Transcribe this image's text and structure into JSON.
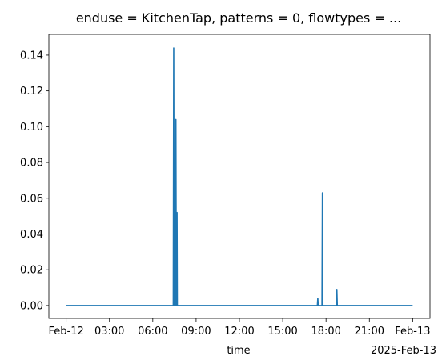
{
  "chart_data": {
    "type": "line",
    "title": "enduse = KitchenTap, patterns = 0, flowtypes = ...",
    "xlabel": "time",
    "ylabel": "",
    "x_offset_label": "2025-Feb-13",
    "xlim_hours": [
      -1.2,
      25.2
    ],
    "ylim": [
      -0.0072,
      0.1516
    ],
    "x_ticks": [
      {
        "hour": 0,
        "label": "Feb-12"
      },
      {
        "hour": 3,
        "label": "03:00"
      },
      {
        "hour": 6,
        "label": "06:00"
      },
      {
        "hour": 9,
        "label": "09:00"
      },
      {
        "hour": 12,
        "label": "12:00"
      },
      {
        "hour": 15,
        "label": "15:00"
      },
      {
        "hour": 18,
        "label": "18:00"
      },
      {
        "hour": 21,
        "label": "21:00"
      },
      {
        "hour": 24,
        "label": "Feb-13"
      }
    ],
    "y_ticks": [
      {
        "value": 0.0,
        "label": "0.00"
      },
      {
        "value": 0.02,
        "label": "0.02"
      },
      {
        "value": 0.04,
        "label": "0.04"
      },
      {
        "value": 0.06,
        "label": "0.06"
      },
      {
        "value": 0.08,
        "label": "0.08"
      },
      {
        "value": 0.1,
        "label": "0.10"
      },
      {
        "value": 0.12,
        "label": "0.12"
      },
      {
        "value": 0.14,
        "label": "0.14"
      }
    ],
    "series": [
      {
        "color": "#1f77b4",
        "points": [
          [
            0.0,
            0.0
          ],
          [
            7.42,
            0.0
          ],
          [
            7.45,
            0.144
          ],
          [
            7.48,
            0.0
          ],
          [
            7.5,
            0.0
          ],
          [
            7.52,
            0.051
          ],
          [
            7.54,
            0.0
          ],
          [
            7.58,
            0.0
          ],
          [
            7.6,
            0.104
          ],
          [
            7.63,
            0.0
          ],
          [
            7.66,
            0.0
          ],
          [
            7.68,
            0.052
          ],
          [
            7.7,
            0.0
          ],
          [
            17.4,
            0.0
          ],
          [
            17.43,
            0.004
          ],
          [
            17.46,
            0.0
          ],
          [
            17.72,
            0.0
          ],
          [
            17.75,
            0.063
          ],
          [
            17.78,
            0.0
          ],
          [
            18.72,
            0.0
          ],
          [
            18.75,
            0.009
          ],
          [
            18.78,
            0.0
          ],
          [
            24.0,
            0.0
          ]
        ]
      }
    ]
  }
}
